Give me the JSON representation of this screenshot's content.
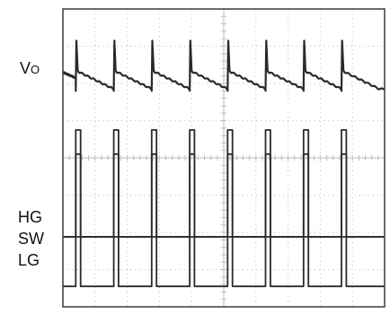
{
  "labels": {
    "vo_main": "V",
    "vo_sub": "O",
    "hg": "HG",
    "sw": "SW",
    "lg": "LG"
  },
  "chart_data": {
    "type": "line",
    "title": "",
    "grid": true,
    "divisions": {
      "x": 10,
      "y": 8
    },
    "colors": {
      "trace": "#2a2a2a",
      "grid": "#bdbdbd",
      "frame": "#3a3a3a"
    },
    "period_div": 1.18,
    "edges_div": [
      0.4,
      1.58,
      2.76,
      3.94,
      5.12,
      6.3,
      7.48,
      8.66
    ],
    "series": [
      {
        "label_key": "vo",
        "kind": "ripple",
        "baseline_div": 1.75,
        "ripple_div": 0.5,
        "spike_div": 0.9
      },
      {
        "label_key": "hg",
        "kind": "pulse",
        "low_div": 6.12,
        "high_div": 3.25,
        "pulse_width_div": 0.15
      },
      {
        "label_key": "sw",
        "kind": "pulse",
        "low_div": 6.12,
        "high_div": 3.9,
        "pulse_width_div": 0.15
      },
      {
        "label_key": "lg",
        "kind": "pulse",
        "low_div": 7.45,
        "high_div": 6.12,
        "pulse_width_div": 0.15
      }
    ]
  }
}
